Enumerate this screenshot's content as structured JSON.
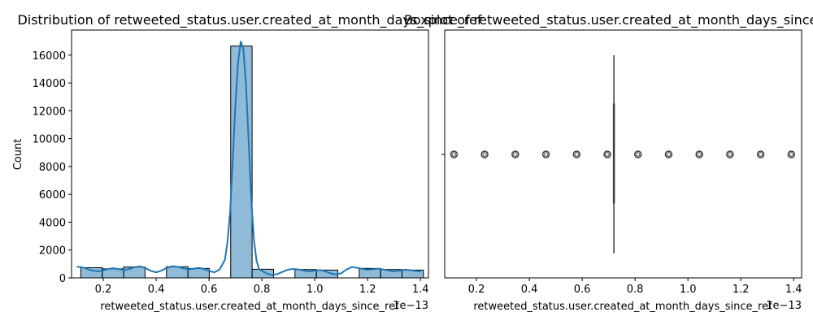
{
  "chart_data": [
    {
      "type": "bar",
      "title": "Distribution of retweeted_status.user.created_at_month_days_since_ref",
      "xlabel": "retweeted_status.user.created_at_month_days_since_ref",
      "ylabel": "Count",
      "x_offset_label": "1e−13",
      "xlim": [
        0.08,
        1.43
      ],
      "ylim": [
        0,
        17800
      ],
      "x_ticks": [
        0.2,
        0.4,
        0.6,
        0.8,
        1.0,
        1.2,
        1.4
      ],
      "x_tick_labels": [
        "0.2",
        "0.4",
        "0.6",
        "0.8",
        "1.0",
        "1.2",
        "1.4"
      ],
      "y_ticks": [
        0,
        2000,
        4000,
        6000,
        8000,
        10000,
        12000,
        14000,
        16000
      ],
      "y_tick_labels": [
        "0",
        "2000",
        "4000",
        "6000",
        "8000",
        "10000",
        "12000",
        "14000",
        "16000"
      ],
      "bins": [
        {
          "start": 0.115,
          "end": 0.196,
          "count": 730
        },
        {
          "start": 0.196,
          "end": 0.277,
          "count": 650
        },
        {
          "start": 0.277,
          "end": 0.358,
          "count": 780
        },
        {
          "start": 0.358,
          "end": 0.439,
          "count": 0
        },
        {
          "start": 0.439,
          "end": 0.52,
          "count": 800
        },
        {
          "start": 0.52,
          "end": 0.601,
          "count": 680
        },
        {
          "start": 0.601,
          "end": 0.682,
          "count": 0
        },
        {
          "start": 0.682,
          "end": 0.763,
          "count": 16650
        },
        {
          "start": 0.763,
          "end": 0.844,
          "count": 620
        },
        {
          "start": 0.844,
          "end": 0.925,
          "count": 0
        },
        {
          "start": 0.925,
          "end": 1.006,
          "count": 600
        },
        {
          "start": 1.006,
          "end": 1.087,
          "count": 560
        },
        {
          "start": 1.087,
          "end": 1.168,
          "count": 0
        },
        {
          "start": 1.168,
          "end": 1.249,
          "count": 680
        },
        {
          "start": 1.249,
          "end": 1.33,
          "count": 600
        },
        {
          "start": 1.33,
          "end": 1.411,
          "count": 560
        }
      ],
      "kde": {
        "x": [
          0.1,
          0.12,
          0.14,
          0.16,
          0.18,
          0.2,
          0.22,
          0.24,
          0.26,
          0.28,
          0.3,
          0.32,
          0.34,
          0.36,
          0.38,
          0.4,
          0.42,
          0.44,
          0.46,
          0.48,
          0.5,
          0.52,
          0.54,
          0.56,
          0.58,
          0.6,
          0.62,
          0.64,
          0.66,
          0.67,
          0.68,
          0.69,
          0.7,
          0.71,
          0.72,
          0.73,
          0.74,
          0.75,
          0.76,
          0.77,
          0.78,
          0.79,
          0.8,
          0.82,
          0.84,
          0.86,
          0.88,
          0.9,
          0.92,
          0.94,
          0.96,
          0.98,
          1.0,
          1.02,
          1.04,
          1.06,
          1.08,
          1.1,
          1.12,
          1.14,
          1.16,
          1.18,
          1.2,
          1.22,
          1.24,
          1.26,
          1.28,
          1.3,
          1.32,
          1.34,
          1.36,
          1.38,
          1.4
        ],
        "y": [
          800,
          760,
          640,
          520,
          470,
          540,
          650,
          690,
          620,
          560,
          650,
          780,
          820,
          700,
          500,
          400,
          520,
          720,
          840,
          800,
          700,
          620,
          650,
          720,
          650,
          500,
          400,
          600,
          1300,
          2600,
          4800,
          8500,
          12500,
          15500,
          17000,
          16400,
          13800,
          9800,
          5600,
          2700,
          1200,
          620,
          500,
          300,
          200,
          280,
          450,
          600,
          640,
          600,
          520,
          460,
          520,
          560,
          480,
          320,
          250,
          330,
          600,
          780,
          720,
          640,
          580,
          620,
          660,
          600,
          520,
          460,
          520,
          580,
          560,
          500,
          460
        ]
      }
    },
    {
      "type": "box",
      "title": "Boxplot of retweeted_status.user.created_at_month_days_since_ref",
      "xlabel": "retweeted_status.user.created_at_month_days_since_ref",
      "x_offset_label": "1e−13",
      "xlim": [
        0.08,
        1.43
      ],
      "x_ticks": [
        0.2,
        0.4,
        0.6,
        0.8,
        1.0,
        1.2,
        1.4
      ],
      "x_tick_labels": [
        "0.2",
        "0.4",
        "0.6",
        "0.8",
        "1.0",
        "1.2",
        "1.4"
      ],
      "median": 0.72,
      "q1": 0.72,
      "q3": 0.72,
      "whisker_low": 0.72,
      "whisker_high": 0.72,
      "outliers": [
        0.115,
        0.231,
        0.347,
        0.463,
        0.579,
        0.695,
        0.811,
        0.927,
        1.043,
        1.159,
        1.275,
        1.391
      ]
    }
  ]
}
